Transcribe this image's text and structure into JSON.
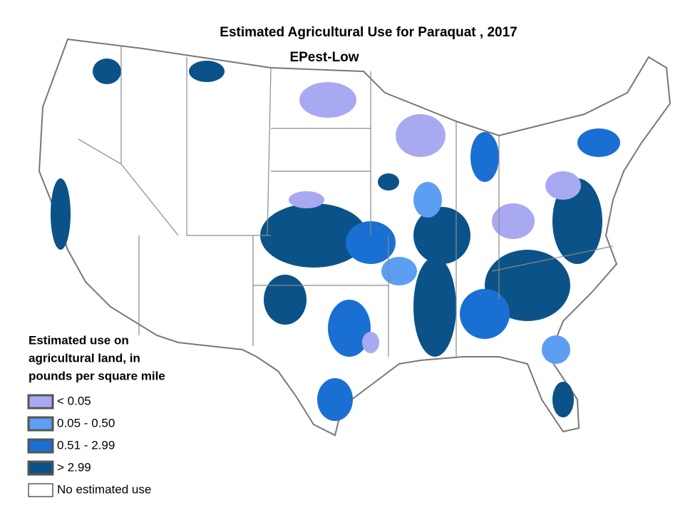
{
  "title": "Estimated Agricultural Use for Paraquat , 2017",
  "subtitle": "EPest-Low",
  "legend": {
    "title_lines": [
      "Estimated use on",
      "agricultural land, in",
      "pounds per square mile"
    ],
    "items": [
      {
        "label": "< 0.05",
        "color": "#a9a9f2"
      },
      {
        "label": "0.05 - 0.50",
        "color": "#5b9ef2"
      },
      {
        "label": "0.51 - 2.99",
        "color": "#1a6fd2"
      },
      {
        "label": "> 2.99",
        "color": "#0b5288"
      },
      {
        "label": "No estimated use",
        "color": "#ffffff"
      }
    ]
  }
}
